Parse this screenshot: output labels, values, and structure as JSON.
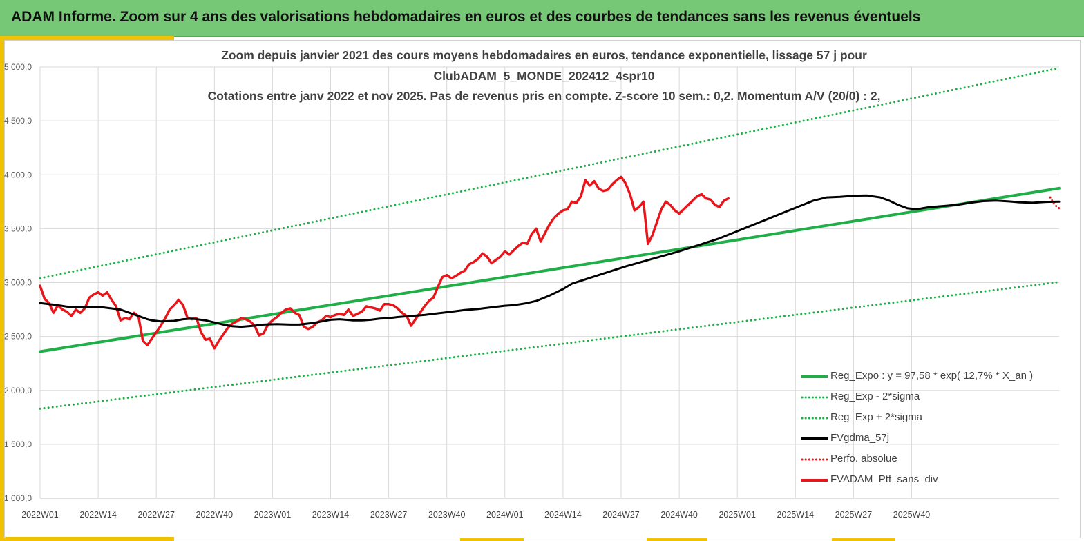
{
  "header": {
    "title": "ADAM Informe. Zoom sur 4 ans des valorisations hebdomadaires en euros et des courbes de tendances sans les revenus éventuels"
  },
  "colors": {
    "banner": "#76c776",
    "accent": "#f2c200",
    "trend": "#1fae47",
    "fvgdma": "#000000",
    "fvadam": "#e8161b",
    "perfo": "#e8161b"
  },
  "chart_data": {
    "type": "line",
    "title_lines": [
      "Zoom depuis janvier 2021 des cours moyens hebdomadaires  en euros, tendance exponentielle, lissage 57 j pour",
      "ClubADAM_5_MONDE_202412_4spr10",
      "Cotations entre janv 2022 et nov 2025. Pas de revenus pris en compte. Z-score 10 sem.: 0,2. Momentum A/V (20/0) : 2,"
    ],
    "ylim": [
      1000,
      5000
    ],
    "y_ticks": [
      "1 000,0",
      "1 500,0",
      "2 000,0",
      "2 500,0",
      "3 000,0",
      "3 500,0",
      "4 000,0",
      "4 500,0",
      "5 000,0"
    ],
    "x_ticks": [
      "2022W01",
      "2022W14",
      "2022W27",
      "2022W40",
      "2023W01",
      "2023W14",
      "2023W27",
      "2023W40",
      "2024W01",
      "2024W14",
      "2024W27",
      "2024W40",
      "2025W01",
      "2025W14",
      "2025W27",
      "2025W40"
    ],
    "x_range_weeks": [
      0,
      204
    ],
    "grid": true,
    "legend_position": "bottom-right",
    "series": [
      {
        "name": "Reg_Expo : y = 97,58 * exp( 12,7% *  X_an )",
        "style": "solid",
        "points": [
          [
            0,
            2360
          ],
          [
            204,
            3875
          ]
        ]
      },
      {
        "name": "Reg_Exp - 2*sigma",
        "style": "dotted",
        "points": [
          [
            0,
            1830
          ],
          [
            204,
            3005
          ]
        ]
      },
      {
        "name": "Reg_Exp + 2*sigma",
        "style": "dotted",
        "points": [
          [
            0,
            3040
          ],
          [
            204,
            4990
          ]
        ]
      },
      {
        "name": "FVgdma_57j",
        "style": "solid",
        "points": [
          [
            0,
            2810
          ],
          [
            4,
            2790
          ],
          [
            7,
            2770
          ],
          [
            14,
            2770
          ],
          [
            18,
            2750
          ],
          [
            20,
            2720
          ],
          [
            22,
            2690
          ],
          [
            24,
            2660
          ],
          [
            25,
            2650
          ],
          [
            27,
            2640
          ],
          [
            30,
            2645
          ],
          [
            32,
            2660
          ],
          [
            34,
            2665
          ],
          [
            37,
            2650
          ],
          [
            39,
            2630
          ],
          [
            41,
            2610
          ],
          [
            43,
            2595
          ],
          [
            45,
            2590
          ],
          [
            48,
            2600
          ],
          [
            50,
            2610
          ],
          [
            53,
            2615
          ],
          [
            56,
            2610
          ],
          [
            58,
            2610
          ],
          [
            61,
            2625
          ],
          [
            63,
            2640
          ],
          [
            65,
            2655
          ],
          [
            67,
            2660
          ],
          [
            70,
            2650
          ],
          [
            72,
            2650
          ],
          [
            74,
            2655
          ],
          [
            76,
            2665
          ],
          [
            78,
            2670
          ],
          [
            80,
            2680
          ],
          [
            83,
            2690
          ],
          [
            86,
            2700
          ],
          [
            89,
            2715
          ],
          [
            92,
            2730
          ],
          [
            95,
            2745
          ],
          [
            98,
            2755
          ],
          [
            101,
            2770
          ],
          [
            104,
            2785
          ],
          [
            106,
            2790
          ],
          [
            109,
            2810
          ],
          [
            111,
            2830
          ],
          [
            114,
            2880
          ],
          [
            117,
            2940
          ],
          [
            119,
            2990
          ],
          [
            122,
            3030
          ],
          [
            125,
            3070
          ],
          [
            128,
            3110
          ],
          [
            131,
            3150
          ],
          [
            134,
            3185
          ],
          [
            137,
            3220
          ],
          [
            140,
            3255
          ],
          [
            143,
            3290
          ],
          [
            146,
            3330
          ],
          [
            149,
            3370
          ],
          [
            152,
            3410
          ],
          [
            155,
            3460
          ],
          [
            158,
            3510
          ],
          [
            161,
            3560
          ],
          [
            164,
            3610
          ],
          [
            167,
            3660
          ],
          [
            170,
            3710
          ],
          [
            173,
            3760
          ],
          [
            176,
            3790
          ],
          [
            179,
            3795
          ],
          [
            182,
            3805
          ],
          [
            185,
            3808
          ],
          [
            188,
            3790
          ],
          [
            190,
            3760
          ],
          [
            192,
            3720
          ],
          [
            194,
            3690
          ],
          [
            196,
            3680
          ],
          [
            199,
            3700
          ],
          [
            202,
            3710
          ],
          [
            205,
            3720
          ],
          [
            208,
            3740
          ],
          [
            211,
            3755
          ],
          [
            214,
            3760
          ],
          [
            217,
            3752
          ],
          [
            219,
            3745
          ],
          [
            222,
            3740
          ],
          [
            225,
            3748
          ],
          [
            228,
            3750
          ]
        ]
      },
      {
        "name": "Perfo. absolue",
        "style": "dotted",
        "points": [
          [
            226,
            3790
          ],
          [
            227,
            3720
          ],
          [
            228,
            3690
          ]
        ]
      },
      {
        "name": "FVADAM_Ptf_sans_div",
        "style": "solid",
        "points": [
          [
            0,
            2970
          ],
          [
            1,
            2850
          ],
          [
            2,
            2810
          ],
          [
            3,
            2720
          ],
          [
            4,
            2790
          ],
          [
            5,
            2750
          ],
          [
            6,
            2730
          ],
          [
            7,
            2690
          ],
          [
            8,
            2750
          ],
          [
            9,
            2720
          ],
          [
            10,
            2760
          ],
          [
            11,
            2860
          ],
          [
            12,
            2890
          ],
          [
            13,
            2910
          ],
          [
            14,
            2880
          ],
          [
            15,
            2910
          ],
          [
            16,
            2840
          ],
          [
            17,
            2780
          ],
          [
            18,
            2650
          ],
          [
            19,
            2670
          ],
          [
            20,
            2660
          ],
          [
            21,
            2720
          ],
          [
            22,
            2690
          ],
          [
            23,
            2460
          ],
          [
            24,
            2420
          ],
          [
            25,
            2480
          ],
          [
            26,
            2540
          ],
          [
            27,
            2600
          ],
          [
            28,
            2670
          ],
          [
            29,
            2750
          ],
          [
            30,
            2790
          ],
          [
            31,
            2840
          ],
          [
            32,
            2790
          ],
          [
            33,
            2670
          ],
          [
            34,
            2660
          ],
          [
            35,
            2670
          ],
          [
            36,
            2540
          ],
          [
            37,
            2470
          ],
          [
            38,
            2480
          ],
          [
            39,
            2390
          ],
          [
            40,
            2460
          ],
          [
            41,
            2520
          ],
          [
            42,
            2580
          ],
          [
            43,
            2620
          ],
          [
            44,
            2640
          ],
          [
            45,
            2670
          ],
          [
            46,
            2660
          ],
          [
            47,
            2640
          ],
          [
            48,
            2600
          ],
          [
            49,
            2510
          ],
          [
            50,
            2530
          ],
          [
            51,
            2610
          ],
          [
            52,
            2650
          ],
          [
            53,
            2680
          ],
          [
            54,
            2720
          ],
          [
            55,
            2750
          ],
          [
            56,
            2760
          ],
          [
            57,
            2720
          ],
          [
            58,
            2700
          ],
          [
            59,
            2590
          ],
          [
            60,
            2570
          ],
          [
            61,
            2590
          ],
          [
            62,
            2630
          ],
          [
            63,
            2650
          ],
          [
            64,
            2690
          ],
          [
            65,
            2680
          ],
          [
            66,
            2700
          ],
          [
            67,
            2710
          ],
          [
            68,
            2700
          ],
          [
            69,
            2750
          ],
          [
            70,
            2690
          ],
          [
            71,
            2710
          ],
          [
            72,
            2730
          ],
          [
            73,
            2780
          ],
          [
            74,
            2770
          ],
          [
            75,
            2760
          ],
          [
            76,
            2740
          ],
          [
            77,
            2800
          ],
          [
            78,
            2800
          ],
          [
            79,
            2790
          ],
          [
            80,
            2760
          ],
          [
            81,
            2720
          ],
          [
            82,
            2690
          ],
          [
            83,
            2600
          ],
          [
            84,
            2660
          ],
          [
            85,
            2720
          ],
          [
            86,
            2780
          ],
          [
            87,
            2830
          ],
          [
            88,
            2860
          ],
          [
            89,
            2960
          ],
          [
            90,
            3050
          ],
          [
            91,
            3070
          ],
          [
            92,
            3040
          ],
          [
            93,
            3060
          ],
          [
            94,
            3090
          ],
          [
            95,
            3110
          ],
          [
            96,
            3170
          ],
          [
            97,
            3190
          ],
          [
            98,
            3220
          ],
          [
            99,
            3270
          ],
          [
            100,
            3240
          ],
          [
            101,
            3180
          ],
          [
            102,
            3210
          ],
          [
            103,
            3240
          ],
          [
            104,
            3290
          ],
          [
            105,
            3260
          ],
          [
            106,
            3300
          ],
          [
            107,
            3340
          ],
          [
            108,
            3370
          ],
          [
            109,
            3360
          ],
          [
            110,
            3450
          ],
          [
            111,
            3500
          ],
          [
            112,
            3380
          ],
          [
            113,
            3460
          ],
          [
            114,
            3540
          ],
          [
            115,
            3600
          ],
          [
            116,
            3640
          ],
          [
            117,
            3670
          ],
          [
            118,
            3680
          ],
          [
            119,
            3750
          ],
          [
            120,
            3740
          ],
          [
            121,
            3800
          ],
          [
            122,
            3950
          ],
          [
            123,
            3900
          ],
          [
            124,
            3940
          ],
          [
            125,
            3870
          ],
          [
            126,
            3850
          ],
          [
            127,
            3860
          ],
          [
            128,
            3910
          ],
          [
            129,
            3950
          ],
          [
            130,
            3980
          ],
          [
            131,
            3920
          ],
          [
            132,
            3820
          ],
          [
            133,
            3670
          ],
          [
            134,
            3700
          ],
          [
            135,
            3750
          ],
          [
            136,
            3360
          ],
          [
            137,
            3440
          ],
          [
            138,
            3560
          ],
          [
            139,
            3680
          ],
          [
            140,
            3750
          ],
          [
            141,
            3720
          ],
          [
            142,
            3670
          ],
          [
            143,
            3640
          ],
          [
            144,
            3680
          ],
          [
            145,
            3720
          ],
          [
            146,
            3760
          ],
          [
            147,
            3800
          ],
          [
            148,
            3820
          ],
          [
            149,
            3780
          ],
          [
            150,
            3770
          ],
          [
            151,
            3720
          ],
          [
            152,
            3700
          ],
          [
            153,
            3760
          ],
          [
            154,
            3780
          ]
        ]
      }
    ]
  },
  "legend": {
    "items": [
      {
        "label": "Reg_Expo : y = 97,58 * exp( 12,7% *  X_an )",
        "style": "solid",
        "color": "#1fae47"
      },
      {
        "label": "Reg_Exp - 2*sigma",
        "style": "dotted",
        "color": "#1fae47"
      },
      {
        "label": "Reg_Exp + 2*sigma",
        "style": "dotted",
        "color": "#1fae47"
      },
      {
        "label": "FVgdma_57j",
        "style": "solid",
        "color": "#000000"
      },
      {
        "label": "Perfo. absolue",
        "style": "dotted",
        "color": "#e8161b"
      },
      {
        "label": "FVADAM_Ptf_sans_div",
        "style": "solid",
        "color": "#e8161b"
      }
    ]
  }
}
